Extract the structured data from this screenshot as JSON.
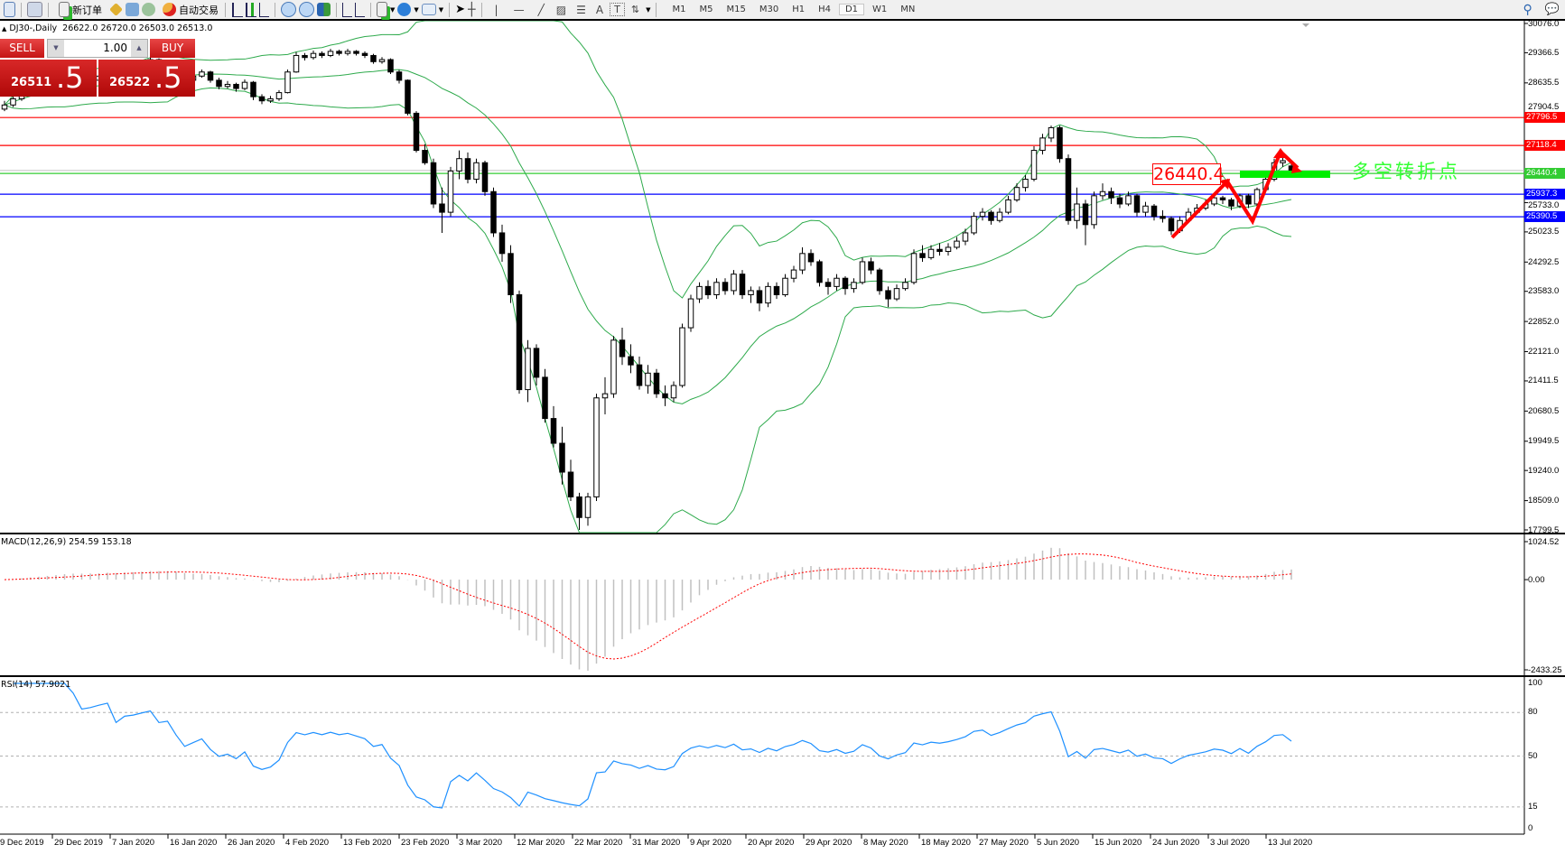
{
  "toolbar": {
    "new_order": "新订单",
    "auto_trading": "自动交易",
    "timeframes": [
      "M1",
      "M5",
      "M15",
      "M30",
      "H1",
      "H4",
      "D1",
      "W1",
      "MN"
    ],
    "active_timeframe": "D1"
  },
  "chart_header": {
    "symbol": "DJ30-,Daily",
    "ohlc": "26622.0 26720.0 26503.0 26513.0"
  },
  "trade_panel": {
    "sell_label": "SELL",
    "buy_label": "BUY",
    "lot": "1.00",
    "sell_price_main": "26511",
    "sell_price_big": ".5",
    "buy_price_main": "26522",
    "buy_price_big": ".5"
  },
  "annotations": {
    "level_box": "26440.4",
    "note": "多空转折点"
  },
  "colors": {
    "bull": "#ffffff",
    "bear": "#000000",
    "bands": "#2eaa4c",
    "resistance": "#ff0000",
    "support": "#0000ff",
    "pivot": "#33cc33",
    "macd_hist": "#c0c0c0",
    "macd_signal": "#ff0000",
    "rsi": "#1e90ff"
  },
  "chart_data": [
    {
      "type": "candlestick",
      "title": "DJ30-,Daily",
      "ylim": [
        17799.5,
        30076.0
      ],
      "price_ticks": [
        "30076.0",
        "29366.5",
        "28635.5",
        "27904.5",
        "25733.0",
        "25023.5",
        "24292.5",
        "23583.0",
        "22852.0",
        "22121.0",
        "21411.5",
        "20680.5",
        "19949.5",
        "19240.0",
        "18509.0",
        "17799.5"
      ],
      "time_labels": [
        "9 Dec 2019",
        "29 Dec 2019",
        "7 Jan 2020",
        "16 Jan 2020",
        "26 Jan 2020",
        "4 Feb 2020",
        "13 Feb 2020",
        "23 Feb 2020",
        "3 Mar 2020",
        "12 Mar 2020",
        "22 Mar 2020",
        "31 Mar 2020",
        "9 Apr 2020",
        "20 Apr 2020",
        "29 Apr 2020",
        "8 May 2020",
        "18 May 2020",
        "27 May 2020",
        "5 Jun 2020",
        "15 Jun 2020",
        "24 Jun 2020",
        "3 Jul 2020",
        "13 Jul 2020"
      ],
      "indicator": "Bollinger Bands (20, 2)",
      "hlines": [
        {
          "value": 27796.5,
          "label": "27796.5",
          "color": "#ff0000"
        },
        {
          "value": 27118.4,
          "label": "27118.4",
          "color": "#ff0000"
        },
        {
          "value": 26440.4,
          "label": "26440.4",
          "color": "#33cc33"
        },
        {
          "value": 25937.3,
          "label": "25937.3",
          "color": "#0000ff"
        },
        {
          "value": 25390.5,
          "label": "25390.5",
          "color": "#0000ff"
        }
      ],
      "ohlc": [
        [
          28000,
          28200,
          27950,
          28100
        ],
        [
          28100,
          28300,
          28050,
          28250
        ],
        [
          28250,
          28450,
          28200,
          28400
        ],
        [
          28400,
          28560,
          28350,
          28500
        ],
        [
          28500,
          28620,
          28420,
          28550
        ],
        [
          28550,
          28680,
          28480,
          28600
        ],
        [
          28600,
          28760,
          28560,
          28700
        ],
        [
          28700,
          28870,
          28650,
          28800
        ],
        [
          28800,
          28850,
          28680,
          28750
        ],
        [
          28750,
          28780,
          28560,
          28650
        ],
        [
          28650,
          28760,
          28600,
          28700
        ],
        [
          28700,
          28860,
          28660,
          28800
        ],
        [
          28800,
          28960,
          28760,
          28900
        ],
        [
          28900,
          28950,
          28620,
          28700
        ],
        [
          28700,
          29000,
          28680,
          28950
        ],
        [
          28950,
          29080,
          28900,
          29000
        ],
        [
          29000,
          29160,
          28960,
          29100
        ],
        [
          29100,
          29260,
          29050,
          29200
        ],
        [
          29200,
          29230,
          28980,
          29050
        ],
        [
          29050,
          29160,
          29000,
          29100
        ],
        [
          29100,
          29130,
          28850,
          28900
        ],
        [
          28900,
          28940,
          28640,
          28700
        ],
        [
          28700,
          28880,
          28660,
          28800
        ],
        [
          28800,
          28960,
          28760,
          28900
        ],
        [
          28900,
          28930,
          28640,
          28700
        ],
        [
          28700,
          28760,
          28480,
          28550
        ],
        [
          28550,
          28680,
          28500,
          28600
        ],
        [
          28600,
          28640,
          28420,
          28500
        ],
        [
          28500,
          28720,
          28460,
          28650
        ],
        [
          28650,
          28680,
          28220,
          28300
        ],
        [
          28300,
          28360,
          28120,
          28200
        ],
        [
          28200,
          28320,
          28150,
          28250
        ],
        [
          28250,
          28460,
          28200,
          28400
        ],
        [
          28400,
          28960,
          28380,
          28900
        ],
        [
          28900,
          29380,
          28880,
          29300
        ],
        [
          29300,
          29360,
          29180,
          29250
        ],
        [
          29250,
          29420,
          29200,
          29350
        ],
        [
          29350,
          29400,
          29240,
          29300
        ],
        [
          29300,
          29460,
          29260,
          29400
        ],
        [
          29400,
          29440,
          29300,
          29350
        ],
        [
          29350,
          29460,
          29300,
          29400
        ],
        [
          29400,
          29430,
          29300,
          29350
        ],
        [
          29350,
          29400,
          29240,
          29300
        ],
        [
          29300,
          29340,
          29100,
          29150
        ],
        [
          29150,
          29260,
          29100,
          29200
        ],
        [
          29200,
          29230,
          28850,
          28900
        ],
        [
          28900,
          28950,
          28620,
          28700
        ],
        [
          28700,
          28720,
          27850,
          27900
        ],
        [
          27900,
          27950,
          26950,
          27000
        ],
        [
          27000,
          27150,
          26650,
          26700
        ],
        [
          26700,
          26800,
          25600,
          25700
        ],
        [
          25700,
          26100,
          25000,
          25500
        ],
        [
          25500,
          26600,
          25400,
          26500
        ],
        [
          26500,
          27000,
          26300,
          26800
        ],
        [
          26800,
          26950,
          26200,
          26300
        ],
        [
          26300,
          26800,
          26200,
          26700
        ],
        [
          26700,
          26750,
          25900,
          26000
        ],
        [
          26000,
          26100,
          24900,
          25000
        ],
        [
          25000,
          25200,
          24300,
          24500
        ],
        [
          24500,
          24700,
          23300,
          23500
        ],
        [
          23500,
          23600,
          21100,
          21200
        ],
        [
          21200,
          22400,
          20900,
          22200
        ],
        [
          22200,
          22300,
          21300,
          21500
        ],
        [
          21500,
          21700,
          20400,
          20500
        ],
        [
          20500,
          20800,
          19800,
          19900
        ],
        [
          19900,
          20300,
          18900,
          19200
        ],
        [
          19200,
          19500,
          18500,
          18600
        ],
        [
          18600,
          18700,
          17800,
          18100
        ],
        [
          18100,
          18700,
          17900,
          18600
        ],
        [
          18600,
          21100,
          18500,
          21000
        ],
        [
          21000,
          21500,
          20600,
          21100
        ],
        [
          21100,
          22500,
          21000,
          22400
        ],
        [
          22400,
          22700,
          21800,
          22000
        ],
        [
          22000,
          22300,
          21600,
          21800
        ],
        [
          21800,
          22000,
          21200,
          21300
        ],
        [
          21300,
          21800,
          21100,
          21600
        ],
        [
          21600,
          21700,
          21000,
          21100
        ],
        [
          21100,
          21300,
          20800,
          21000
        ],
        [
          21000,
          21400,
          20900,
          21300
        ],
        [
          21300,
          22800,
          21250,
          22700
        ],
        [
          22700,
          23500,
          22600,
          23400
        ],
        [
          23400,
          23800,
          23300,
          23700
        ],
        [
          23700,
          23850,
          23400,
          23500
        ],
        [
          23500,
          23900,
          23400,
          23800
        ],
        [
          23800,
          23900,
          23500,
          23600
        ],
        [
          23600,
          24100,
          23500,
          24000
        ],
        [
          24000,
          24100,
          23400,
          23500
        ],
        [
          23500,
          23700,
          23300,
          23600
        ],
        [
          23600,
          23700,
          23100,
          23300
        ],
        [
          23300,
          23800,
          23200,
          23700
        ],
        [
          23700,
          23800,
          23400,
          23500
        ],
        [
          23500,
          24000,
          23450,
          23900
        ],
        [
          23900,
          24200,
          23800,
          24100
        ],
        [
          24100,
          24650,
          24000,
          24500
        ],
        [
          24500,
          24600,
          24200,
          24300
        ],
        [
          24300,
          24350,
          23700,
          23800
        ],
        [
          23800,
          23900,
          23500,
          23700
        ],
        [
          23700,
          24000,
          23600,
          23900
        ],
        [
          23900,
          23950,
          23500,
          23650
        ],
        [
          23650,
          23900,
          23550,
          23800
        ],
        [
          23800,
          24400,
          23750,
          24300
        ],
        [
          24300,
          24400,
          24000,
          24100
        ],
        [
          24100,
          24150,
          23500,
          23600
        ],
        [
          23600,
          23700,
          23200,
          23400
        ],
        [
          23400,
          23750,
          23350,
          23650
        ],
        [
          23650,
          23900,
          23600,
          23800
        ],
        [
          23800,
          24600,
          23750,
          24500
        ],
        [
          24500,
          24700,
          24300,
          24400
        ],
        [
          24400,
          24700,
          24350,
          24600
        ],
        [
          24600,
          24750,
          24450,
          24550
        ],
        [
          24550,
          24750,
          24450,
          24650
        ],
        [
          24650,
          24900,
          24600,
          24800
        ],
        [
          24800,
          25100,
          24700,
          25000
        ],
        [
          25000,
          25500,
          24950,
          25400
        ],
        [
          25400,
          25600,
          25300,
          25500
        ],
        [
          25500,
          25550,
          25200,
          25300
        ],
        [
          25300,
          25600,
          25250,
          25500
        ],
        [
          25500,
          25900,
          25450,
          25800
        ],
        [
          25800,
          26200,
          25750,
          26100
        ],
        [
          26100,
          26400,
          26000,
          26300
        ],
        [
          26300,
          27100,
          26250,
          27000
        ],
        [
          27000,
          27400,
          26900,
          27300
        ],
        [
          27300,
          27600,
          27200,
          27550
        ],
        [
          27550,
          27600,
          26700,
          26800
        ],
        [
          26800,
          26900,
          25200,
          25300
        ],
        [
          25300,
          26100,
          25100,
          25700
        ],
        [
          25700,
          25800,
          24700,
          25200
        ],
        [
          25200,
          26000,
          25100,
          25900
        ],
        [
          25900,
          26200,
          25800,
          26000
        ],
        [
          26000,
          26100,
          25700,
          25850
        ],
        [
          25850,
          25950,
          25600,
          25700
        ],
        [
          25700,
          26000,
          25650,
          25900
        ],
        [
          25900,
          25950,
          25400,
          25500
        ],
        [
          25500,
          25750,
          25400,
          25650
        ],
        [
          25650,
          25700,
          25300,
          25400
        ],
        [
          25400,
          25550,
          25250,
          25350
        ],
        [
          25350,
          25400,
          24950,
          25050
        ],
        [
          25050,
          25400,
          25000,
          25300
        ],
        [
          25300,
          25600,
          25250,
          25500
        ],
        [
          25500,
          25700,
          25450,
          25600
        ],
        [
          25600,
          25800,
          25550,
          25700
        ],
        [
          25700,
          25950,
          25650,
          25850
        ],
        [
          25850,
          25900,
          25700,
          25800
        ],
        [
          25800,
          25850,
          25550,
          25650
        ],
        [
          25650,
          25950,
          25600,
          25900
        ],
        [
          25900,
          25950,
          25600,
          25700
        ],
        [
          25700,
          26100,
          25650,
          26050
        ],
        [
          26050,
          26350,
          26000,
          26300
        ],
        [
          26300,
          26800,
          26250,
          26700
        ],
        [
          26700,
          26900,
          26600,
          26750
        ],
        [
          26622,
          26720,
          26503,
          26513
        ]
      ]
    },
    {
      "type": "histogram+line",
      "title": "MACD(12,26,9) 254.59 153.18",
      "ylim": [
        -2433.25,
        1024.52
      ],
      "ticks": [
        "1024.52",
        "0.00",
        "-2433.25"
      ]
    },
    {
      "type": "line",
      "title": "RSI(14) 57.9021",
      "ylim": [
        0,
        100
      ],
      "ticks": [
        "100",
        "80",
        "50",
        "15",
        "0"
      ],
      "levels": [
        80,
        50,
        15
      ]
    }
  ]
}
